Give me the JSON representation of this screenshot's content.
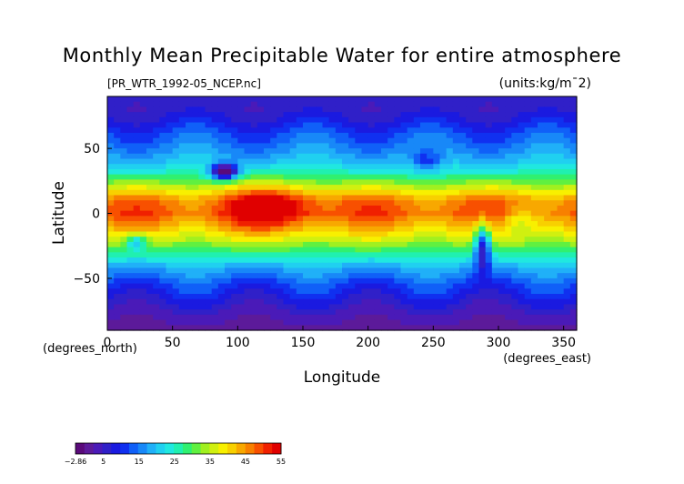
{
  "chart_data": {
    "type": "heatmap",
    "title": "Monthly Mean Precipitable Water for entire atmosphere",
    "file_label": "[PR_WTR_1992-05_NCEP.nc]",
    "units_label": "(units:kg/m¯2)",
    "xlabel": "Longitude",
    "ylabel": "Latitude",
    "x_unit_label": "(degrees_east)",
    "y_unit_label": "(degrees_north)",
    "xlim": [
      0,
      360
    ],
    "ylim": [
      -90,
      90
    ],
    "x_ticks": [
      {
        "value": 0,
        "label": "0"
      },
      {
        "value": 50,
        "label": "50"
      },
      {
        "value": 100,
        "label": "100"
      },
      {
        "value": 150,
        "label": "150"
      },
      {
        "value": 200,
        "label": "200"
      },
      {
        "value": 250,
        "label": "250"
      },
      {
        "value": 300,
        "label": "300"
      },
      {
        "value": 350,
        "label": "350"
      }
    ],
    "y_ticks": [
      {
        "value": 50,
        "label": "50"
      },
      {
        "value": 0,
        "label": "0"
      },
      {
        "value": -50,
        "label": "−50"
      }
    ],
    "colorbar": {
      "min": -2.86,
      "max": 55,
      "ticks": [
        {
          "value": -2.86,
          "label": "−2.86"
        },
        {
          "value": 5,
          "label": "5"
        },
        {
          "value": 15,
          "label": "15"
        },
        {
          "value": 25,
          "label": "25"
        },
        {
          "value": 35,
          "label": "35"
        },
        {
          "value": 45,
          "label": "45"
        },
        {
          "value": 55,
          "label": "55"
        }
      ],
      "colors": [
        "#5a0a7a",
        "#5c1a9a",
        "#4a1ab8",
        "#3020c8",
        "#1a1ae0",
        "#1030f0",
        "#1060f8",
        "#1888f8",
        "#20b0f8",
        "#20d0f0",
        "#20e8e0",
        "#20f0b0",
        "#30f070",
        "#60f040",
        "#a0f020",
        "#d0f010",
        "#f8f000",
        "#f8d000",
        "#f8a800",
        "#f88000",
        "#f85000",
        "#f02000",
        "#e00000"
      ]
    },
    "zonal_profile": [
      {
        "lat": -90,
        "value": 1
      },
      {
        "lat": -80,
        "value": 3
      },
      {
        "lat": -70,
        "value": 6
      },
      {
        "lat": -60,
        "value": 10
      },
      {
        "lat": -50,
        "value": 14
      },
      {
        "lat": -40,
        "value": 20
      },
      {
        "lat": -30,
        "value": 28
      },
      {
        "lat": -20,
        "value": 36
      },
      {
        "lat": -10,
        "value": 43
      },
      {
        "lat": 0,
        "value": 48
      },
      {
        "lat": 10,
        "value": 46
      },
      {
        "lat": 20,
        "value": 36
      },
      {
        "lat": 30,
        "value": 26
      },
      {
        "lat": 40,
        "value": 20
      },
      {
        "lat": 50,
        "value": 16
      },
      {
        "lat": 60,
        "value": 13
      },
      {
        "lat": 70,
        "value": 9
      },
      {
        "lat": 80,
        "value": 6
      },
      {
        "lat": 90,
        "value": 5
      }
    ],
    "features": [
      {
        "lon_center": 125,
        "lat_center": 5,
        "lon_radius": 35,
        "lat_radius": 18,
        "delta": 10
      },
      {
        "lon_center": 90,
        "lat_center": 32,
        "lon_radius": 10,
        "lat_radius": 6,
        "delta": -32
      },
      {
        "lon_center": 288,
        "lat_center": -25,
        "lon_radius": 6,
        "lat_radius": 18,
        "delta": -25
      },
      {
        "lon_center": 22,
        "lat_center": -22,
        "lon_radius": 8,
        "lat_radius": 6,
        "delta": -15
      },
      {
        "lon_center": 245,
        "lat_center": 40,
        "lon_radius": 12,
        "lat_radius": 10,
        "delta": -10
      },
      {
        "lon_center": 315,
        "lat_center": -5,
        "lon_radius": 12,
        "lat_radius": 10,
        "delta": -8
      }
    ]
  }
}
